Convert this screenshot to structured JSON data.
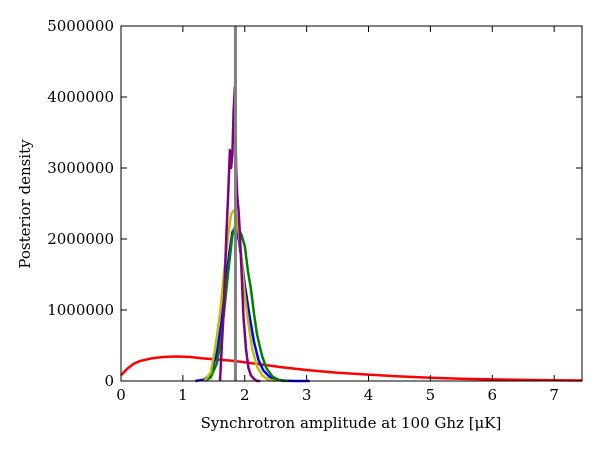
{
  "chart_data": {
    "type": "line",
    "title": "",
    "xlabel": "Synchrotron amplitude at 100 Ghz [μK]",
    "ylabel": "Posterior density",
    "xlim": [
      0,
      7.45
    ],
    "ylim": [
      0,
      5000000
    ],
    "xticks": [
      0,
      1,
      2,
      3,
      4,
      5,
      6,
      7
    ],
    "xtick_labels": [
      "0",
      "1",
      "2",
      "3",
      "4",
      "5",
      "6",
      "7"
    ],
    "yticks": [
      0,
      1000000,
      2000000,
      3000000,
      4000000,
      5000000
    ],
    "ytick_labels": [
      "0",
      "1000000",
      "2000000",
      "3000000",
      "4000000",
      "5000000"
    ],
    "grid": false,
    "legend": "none",
    "vertical_line": {
      "x": 1.85,
      "color": "#808080"
    },
    "series": [
      {
        "color": "#ff0000",
        "x": [
          0,
          0.1,
          0.2,
          0.3,
          0.5,
          0.7,
          0.9,
          1.1,
          1.3,
          1.5,
          1.8,
          2.0,
          2.3,
          2.6,
          3.0,
          3.5,
          4.0,
          4.5,
          5.0,
          5.5,
          6.0,
          6.5,
          7.0,
          7.45
        ],
        "y": [
          80000,
          170000,
          240000,
          280000,
          320000,
          340000,
          345000,
          340000,
          320000,
          305000,
          285000,
          265000,
          230000,
          195000,
          155000,
          115000,
          90000,
          65000,
          45000,
          32000,
          22000,
          15000,
          10000,
          7000
        ]
      },
      {
        "color": "#0000ff",
        "x": [
          1.2,
          1.35,
          1.45,
          1.55,
          1.62,
          1.68,
          1.75,
          1.8,
          1.85,
          1.9,
          1.95,
          2.0,
          2.08,
          2.15,
          2.22,
          2.3,
          2.4,
          2.5,
          2.6,
          2.8,
          3.05
        ],
        "y": [
          0,
          20000,
          100000,
          400000,
          800000,
          1300000,
          1800000,
          2100000,
          2150000,
          2000000,
          1700000,
          1350000,
          900000,
          550000,
          300000,
          150000,
          60000,
          20000,
          5000,
          0,
          0
        ]
      },
      {
        "color": "#008000",
        "x": [
          1.35,
          1.45,
          1.55,
          1.62,
          1.68,
          1.74,
          1.8,
          1.85,
          1.9,
          1.95,
          2.0,
          2.05,
          2.1,
          2.15,
          2.2,
          2.28,
          2.35,
          2.45,
          2.55,
          2.7
        ],
        "y": [
          0,
          50000,
          250000,
          600000,
          1100000,
          1600000,
          2050000,
          2200000,
          2150000,
          2050000,
          1900000,
          1550000,
          1300000,
          950000,
          650000,
          350000,
          180000,
          60000,
          15000,
          0
        ]
      },
      {
        "color": "#bfbf00",
        "x": [
          1.35,
          1.45,
          1.52,
          1.6,
          1.67,
          1.73,
          1.78,
          1.82,
          1.86,
          1.9,
          1.95,
          2.0,
          2.06,
          2.12,
          2.2,
          2.28,
          2.38,
          2.5
        ],
        "y": [
          0,
          120000,
          450000,
          950000,
          1550000,
          2050000,
          2350000,
          2400000,
          2350000,
          2100000,
          1700000,
          1200000,
          800000,
          450000,
          200000,
          80000,
          20000,
          0
        ]
      },
      {
        "color": "#800080",
        "x": [
          1.6,
          1.66,
          1.7,
          1.73,
          1.76,
          1.78,
          1.8,
          1.82,
          1.84,
          1.86,
          1.88,
          1.9,
          1.92,
          1.95,
          1.98,
          2.02,
          2.06,
          2.1,
          2.15,
          2.2,
          2.25
        ],
        "y": [
          0,
          1000000,
          2000000,
          2600000,
          3250000,
          3000000,
          3200000,
          3800000,
          4150000,
          3000000,
          2600000,
          2400000,
          2100000,
          1500000,
          900000,
          450000,
          180000,
          80000,
          30000,
          0,
          0
        ]
      }
    ]
  }
}
